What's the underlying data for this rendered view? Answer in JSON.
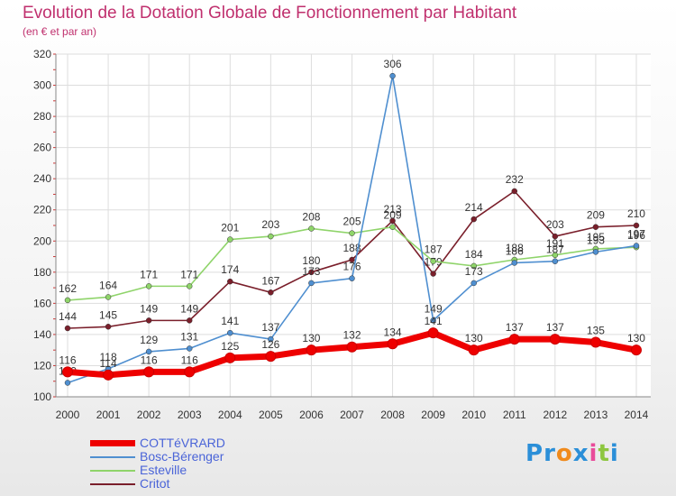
{
  "header": {
    "title": "Evolution de la Dotation Globale de Fonctionnement par Habitant",
    "subtitle": "(en € et par an)"
  },
  "logo": {
    "text": "Proxiti",
    "letters": [
      "P",
      "r",
      "o",
      "x",
      "i",
      "t",
      "i"
    ],
    "letter_colors": [
      "#2b8fd8",
      "#2b8fd8",
      "#f08a1c",
      "#2b8fd8",
      "#e94b9a",
      "#8dc63f",
      "#2b8fd8"
    ]
  },
  "chart_data": {
    "type": "line",
    "title": "Evolution de la Dotation Globale de Fonctionnement par Habitant",
    "subtitle": "(en € et par an)",
    "xlabel": "",
    "ylabel": "",
    "ylim": [
      100,
      320
    ],
    "yticks": [
      100,
      120,
      140,
      160,
      180,
      200,
      220,
      240,
      260,
      280,
      300,
      320
    ],
    "x": [
      "2000",
      "2001",
      "2002",
      "2003",
      "2004",
      "2005",
      "2006",
      "2007",
      "2008",
      "2009",
      "2010",
      "2011",
      "2012",
      "2013",
      "2014"
    ],
    "grid": true,
    "legend": "bottom-left",
    "series": [
      {
        "name": "Critot",
        "color": "#7a1f2b",
        "values": [
          144,
          145,
          149,
          149,
          174,
          167,
          180,
          188,
          213,
          179,
          214,
          232,
          203,
          209,
          210
        ],
        "labels": [
          "144",
          "145",
          "149",
          "149",
          "174",
          "167",
          "180",
          "188",
          "213",
          "179",
          "214",
          "232",
          "203",
          "209",
          "210"
        ]
      },
      {
        "name": "Esteville",
        "color": "#8fd46a",
        "values": [
          162,
          164,
          171,
          171,
          201,
          203,
          208,
          205,
          209,
          187,
          184,
          188,
          191,
          195,
          196
        ],
        "labels": [
          "162",
          "164",
          "171",
          "171",
          "201",
          "203",
          "208",
          "205",
          "209",
          "187",
          "184",
          "188",
          "191",
          "195",
          "196"
        ]
      },
      {
        "name": "Bosc-Bérenger",
        "color": "#4f8fd0",
        "values": [
          109,
          118,
          129,
          131,
          141,
          137,
          173,
          176,
          306,
          149,
          173,
          186,
          187,
          193,
          197
        ],
        "labels": [
          "109",
          "118",
          "129",
          "131",
          "141",
          "137",
          "173",
          "176",
          "306",
          "149",
          "173",
          "186",
          "187",
          "193",
          "197"
        ]
      },
      {
        "name": "COTTéVRARD",
        "color": "#ee0000",
        "values": [
          116,
          114,
          116,
          116,
          125,
          126,
          130,
          132,
          134,
          141,
          130,
          137,
          137,
          135,
          130
        ],
        "labels": [
          "116",
          "114",
          "116",
          "116",
          "125",
          "126",
          "130",
          "132",
          "134",
          "141",
          "130",
          "137",
          "137",
          "135",
          "130"
        ]
      }
    ],
    "legend_entries": [
      {
        "name": "COTTéVRARD",
        "color": "#ee0000",
        "bold": true
      },
      {
        "name": "Bosc-Bérenger",
        "color": "#4f8fd0",
        "bold": false
      },
      {
        "name": "Esteville",
        "color": "#8fd46a",
        "bold": false
      },
      {
        "name": "Critot",
        "color": "#7a1f2b",
        "bold": false
      }
    ]
  }
}
